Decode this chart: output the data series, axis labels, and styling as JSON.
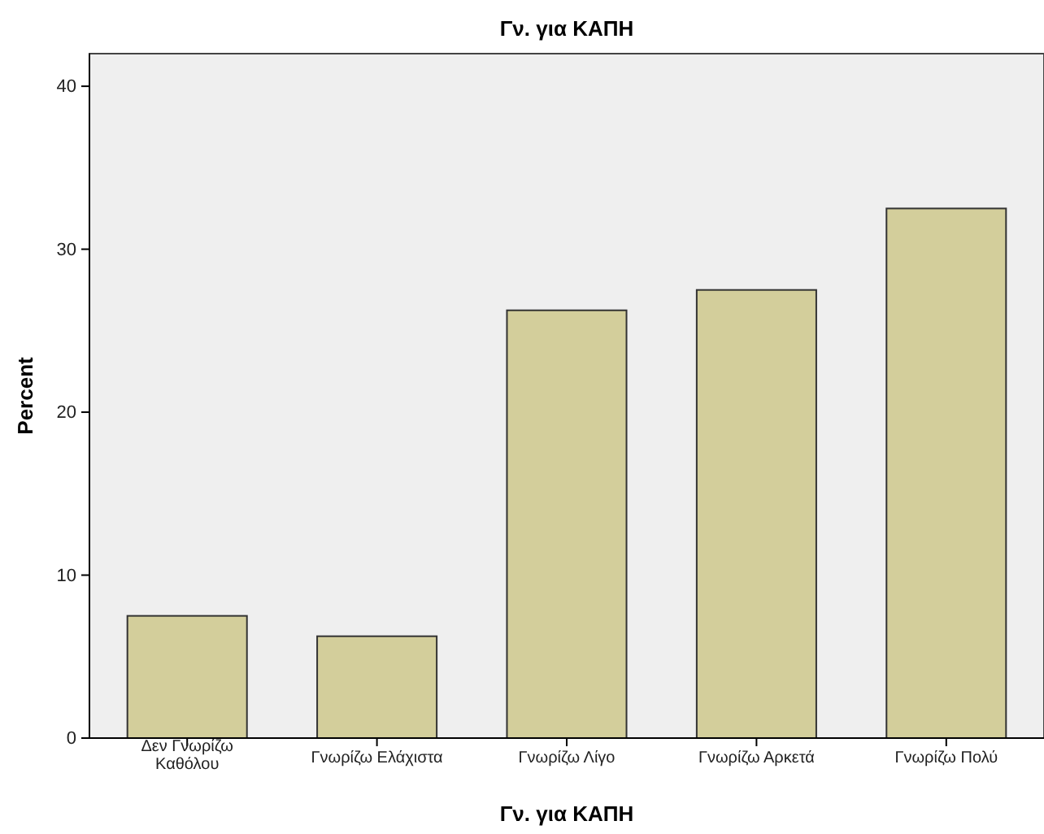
{
  "chart_data": {
    "type": "bar",
    "title": "Γν. για ΚΑΠΗ",
    "xlabel": "Γν. για ΚΑΠΗ",
    "ylabel": "Percent",
    "categories": [
      "Δεν Γνωρίζω Καθόλου",
      "Γνωρίζω Ελάχιστα",
      "Γνωρίζω Λίγο",
      "Γνωρίζω Αρκετά",
      "Γνωρίζω  Πολύ"
    ],
    "values": [
      7.5,
      6.25,
      26.25,
      27.5,
      32.5
    ],
    "color": "#d3ce9b",
    "ylim": [
      0,
      42
    ],
    "yticks": [
      0,
      10,
      20,
      30,
      40
    ],
    "grid": false
  }
}
